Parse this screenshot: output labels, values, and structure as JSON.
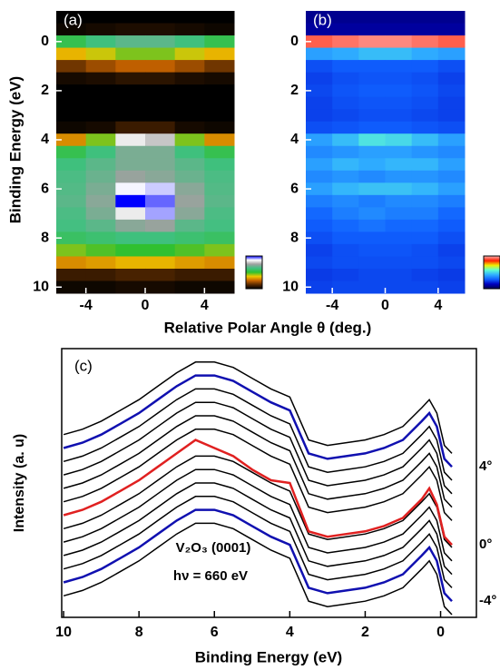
{
  "chart_data": [
    {
      "type": "heatmap",
      "title": "(a)",
      "ylabel": "Binding Energy (eV)",
      "xlabel": "Relative Polar Angle θ (deg.)",
      "x": [
        -5,
        -3,
        -1,
        1,
        3,
        5
      ],
      "y": [
        -1,
        -0.5,
        0,
        0.5,
        1,
        1.5,
        2,
        2.5,
        3,
        3.5,
        4,
        4.5,
        5,
        5.5,
        6,
        6.5,
        7,
        7.5,
        8,
        8.5,
        9,
        9.5,
        10
      ],
      "xlim": [
        -6,
        6
      ],
      "ylim": [
        10.25,
        -1.25
      ],
      "xticks": [
        -4,
        0,
        4
      ],
      "yticks": [
        0,
        2,
        4,
        6,
        8,
        10
      ],
      "zlim": [
        0,
        100
      ],
      "colormap": [
        "#000000",
        "#5a2a00",
        "#c86400",
        "#f0c800",
        "#30c030",
        "#40c080",
        "#a0a0a0",
        "#ffffff",
        "#0000ff"
      ],
      "z": [
        [
          0,
          0,
          0,
          0,
          0,
          0
        ],
        [
          2,
          3,
          4,
          4,
          3,
          2
        ],
        [
          55,
          62,
          66,
          66,
          62,
          55
        ],
        [
          35,
          40,
          45,
          45,
          40,
          35
        ],
        [
          15,
          20,
          24,
          24,
          20,
          15
        ],
        [
          3,
          4,
          6,
          6,
          4,
          3
        ],
        [
          0,
          0,
          0,
          0,
          0,
          0
        ],
        [
          0,
          0,
          0,
          0,
          0,
          0
        ],
        [
          0,
          0,
          0,
          0,
          0,
          0
        ],
        [
          2,
          3,
          8,
          8,
          3,
          2
        ],
        [
          30,
          45,
          85,
          80,
          45,
          30
        ],
        [
          55,
          62,
          70,
          70,
          62,
          55
        ],
        [
          62,
          66,
          70,
          70,
          66,
          62
        ],
        [
          64,
          68,
          74,
          72,
          68,
          64
        ],
        [
          65,
          70,
          88,
          90,
          72,
          65
        ],
        [
          66,
          72,
          100,
          95,
          74,
          66
        ],
        [
          64,
          70,
          85,
          92,
          72,
          64
        ],
        [
          63,
          66,
          72,
          74,
          66,
          63
        ],
        [
          58,
          60,
          62,
          62,
          60,
          58
        ],
        [
          45,
          48,
          50,
          50,
          48,
          45
        ],
        [
          30,
          32,
          35,
          35,
          32,
          30
        ],
        [
          8,
          8,
          10,
          10,
          8,
          8
        ],
        [
          2,
          2,
          3,
          3,
          2,
          2
        ]
      ]
    },
    {
      "type": "heatmap",
      "title": "(b)",
      "x": [
        -5,
        -3,
        -1,
        1,
        3,
        5
      ],
      "y": [
        -1,
        -0.5,
        0,
        0.5,
        1,
        1.5,
        2,
        2.5,
        3,
        3.5,
        4,
        4.5,
        5,
        5.5,
        6,
        6.5,
        7,
        7.5,
        8,
        8.5,
        9,
        9.5,
        10
      ],
      "xlim": [
        -6,
        6
      ],
      "ylim": [
        10.25,
        -1.25
      ],
      "xticks": [
        -4,
        0,
        4
      ],
      "yticks": [
        0,
        2,
        4,
        6,
        8,
        10
      ],
      "zlim": [
        0,
        100
      ],
      "colormap": [
        "#000050",
        "#0000c0",
        "#1060ff",
        "#30b0ff",
        "#60ffd0",
        "#f0f000",
        "#ff2000",
        "#ffb0b0"
      ],
      "z": [
        [
          8,
          8,
          8,
          8,
          8,
          8
        ],
        [
          10,
          10,
          10,
          10,
          10,
          10
        ],
        [
          92,
          94,
          96,
          96,
          94,
          92
        ],
        [
          40,
          42,
          45,
          45,
          42,
          40
        ],
        [
          26,
          28,
          28,
          28,
          28,
          26
        ],
        [
          24,
          26,
          27,
          27,
          26,
          24
        ],
        [
          25,
          27,
          28,
          28,
          27,
          25
        ],
        [
          24,
          26,
          27,
          27,
          26,
          24
        ],
        [
          24,
          25,
          26,
          26,
          25,
          24
        ],
        [
          26,
          27,
          28,
          28,
          27,
          26
        ],
        [
          40,
          45,
          52,
          50,
          45,
          40
        ],
        [
          36,
          38,
          40,
          40,
          38,
          36
        ],
        [
          40,
          44,
          42,
          44,
          44,
          40
        ],
        [
          36,
          38,
          36,
          38,
          38,
          36
        ],
        [
          40,
          44,
          46,
          46,
          44,
          40
        ],
        [
          34,
          36,
          34,
          36,
          36,
          34
        ],
        [
          30,
          34,
          36,
          34,
          34,
          30
        ],
        [
          28,
          30,
          32,
          30,
          30,
          28
        ],
        [
          26,
          28,
          28,
          28,
          28,
          26
        ],
        [
          24,
          26,
          27,
          27,
          26,
          24
        ],
        [
          25,
          26,
          26,
          26,
          26,
          25
        ],
        [
          23,
          24,
          25,
          25,
          24,
          23
        ],
        [
          24,
          25,
          25,
          25,
          25,
          24
        ]
      ]
    },
    {
      "type": "line",
      "title": "(c)",
      "xlabel": "Binding Energy (eV)",
      "ylabel": "Intensity (a. u)",
      "annotations": [
        "V₂O₃ (0001)",
        "hν = 660 eV"
      ],
      "xlim": [
        10.05,
        -0.95
      ],
      "ylim": [
        0,
        100
      ],
      "xticks": [
        10,
        8,
        6,
        4,
        2,
        0
      ],
      "x": [
        10,
        9.5,
        9,
        8.5,
        8,
        7.5,
        7,
        6.5,
        6,
        5.5,
        5,
        4.5,
        4,
        3.5,
        3,
        2.5,
        2,
        1.5,
        1,
        0.5,
        0.3,
        0.1,
        -0.1,
        -0.3
      ],
      "series": [
        {
          "color": "#000000",
          "values": [
            8,
            10,
            13,
            17,
            21,
            26,
            31,
            35,
            35,
            33,
            29,
            25,
            22,
            6,
            4,
            5,
            6,
            8,
            11,
            18,
            21,
            16,
            4,
            1
          ]
        },
        {
          "name": "-4°",
          "color": "#1010b0",
          "values": [
            13,
            15,
            18,
            22,
            26,
            31,
            36,
            40,
            40,
            38,
            34,
            30,
            27,
            11,
            9,
            10,
            11,
            13,
            16,
            23,
            26,
            21,
            9,
            6
          ]
        },
        {
          "color": "#000000",
          "values": [
            18,
            20,
            23,
            27,
            31,
            36,
            41,
            45,
            45,
            43,
            39,
            35,
            32,
            16,
            14,
            15,
            16,
            18,
            21,
            28,
            31,
            26,
            14,
            11
          ]
        },
        {
          "color": "#000000",
          "values": [
            23,
            25,
            28,
            32,
            36,
            41,
            46,
            50,
            50,
            48,
            44,
            40,
            37,
            21,
            19,
            20,
            21,
            23,
            26,
            33,
            36,
            31,
            19,
            16
          ]
        },
        {
          "color": "#000000",
          "values": [
            28,
            30,
            33,
            37,
            41,
            46,
            51,
            55,
            55,
            53,
            49,
            45,
            42,
            26,
            24,
            25,
            26,
            28,
            31,
            38,
            41,
            36,
            24,
            21
          ]
        },
        {
          "color": "#000000",
          "values": [
            33,
            35,
            38,
            42,
            46,
            51,
            56,
            60,
            60,
            58,
            54,
            50,
            47,
            31,
            29,
            30,
            31,
            33,
            36,
            43,
            46,
            41,
            29,
            26
          ]
        },
        {
          "name": "0°",
          "color": "#e02020",
          "values": [
            38,
            40,
            43,
            47,
            51,
            56,
            61,
            66,
            63,
            60,
            55,
            51,
            50,
            32,
            30,
            31,
            32,
            34,
            37,
            44,
            48,
            42,
            30,
            27
          ]
        },
        {
          "color": "#000000",
          "values": [
            43,
            45,
            48,
            52,
            56,
            61,
            66,
            70,
            70,
            68,
            64,
            60,
            57,
            41,
            39,
            40,
            41,
            43,
            46,
            53,
            56,
            51,
            39,
            36
          ]
        },
        {
          "color": "#000000",
          "values": [
            48,
            50,
            53,
            57,
            61,
            66,
            71,
            75,
            75,
            73,
            69,
            65,
            62,
            46,
            44,
            45,
            46,
            48,
            51,
            58,
            61,
            56,
            44,
            41
          ]
        },
        {
          "color": "#000000",
          "values": [
            53,
            55,
            58,
            62,
            66,
            71,
            76,
            80,
            80,
            78,
            74,
            70,
            67,
            51,
            49,
            50,
            51,
            53,
            56,
            63,
            66,
            61,
            49,
            46
          ]
        },
        {
          "color": "#000000",
          "values": [
            58,
            60,
            63,
            67,
            71,
            76,
            81,
            85,
            85,
            83,
            79,
            75,
            72,
            56,
            54,
            55,
            56,
            58,
            61,
            68,
            71,
            66,
            54,
            51
          ]
        },
        {
          "name": "4°",
          "color": "#1010b0",
          "values": [
            63,
            65,
            68,
            72,
            76,
            81,
            86,
            90,
            90,
            88,
            84,
            80,
            77,
            61,
            59,
            60,
            61,
            63,
            66,
            73,
            76,
            71,
            59,
            56
          ]
        },
        {
          "color": "#000000",
          "values": [
            68,
            70,
            73,
            77,
            81,
            86,
            91,
            95,
            95,
            93,
            89,
            85,
            82,
            66,
            64,
            65,
            66,
            68,
            71,
            78,
            81,
            76,
            64,
            61
          ]
        }
      ]
    }
  ]
}
